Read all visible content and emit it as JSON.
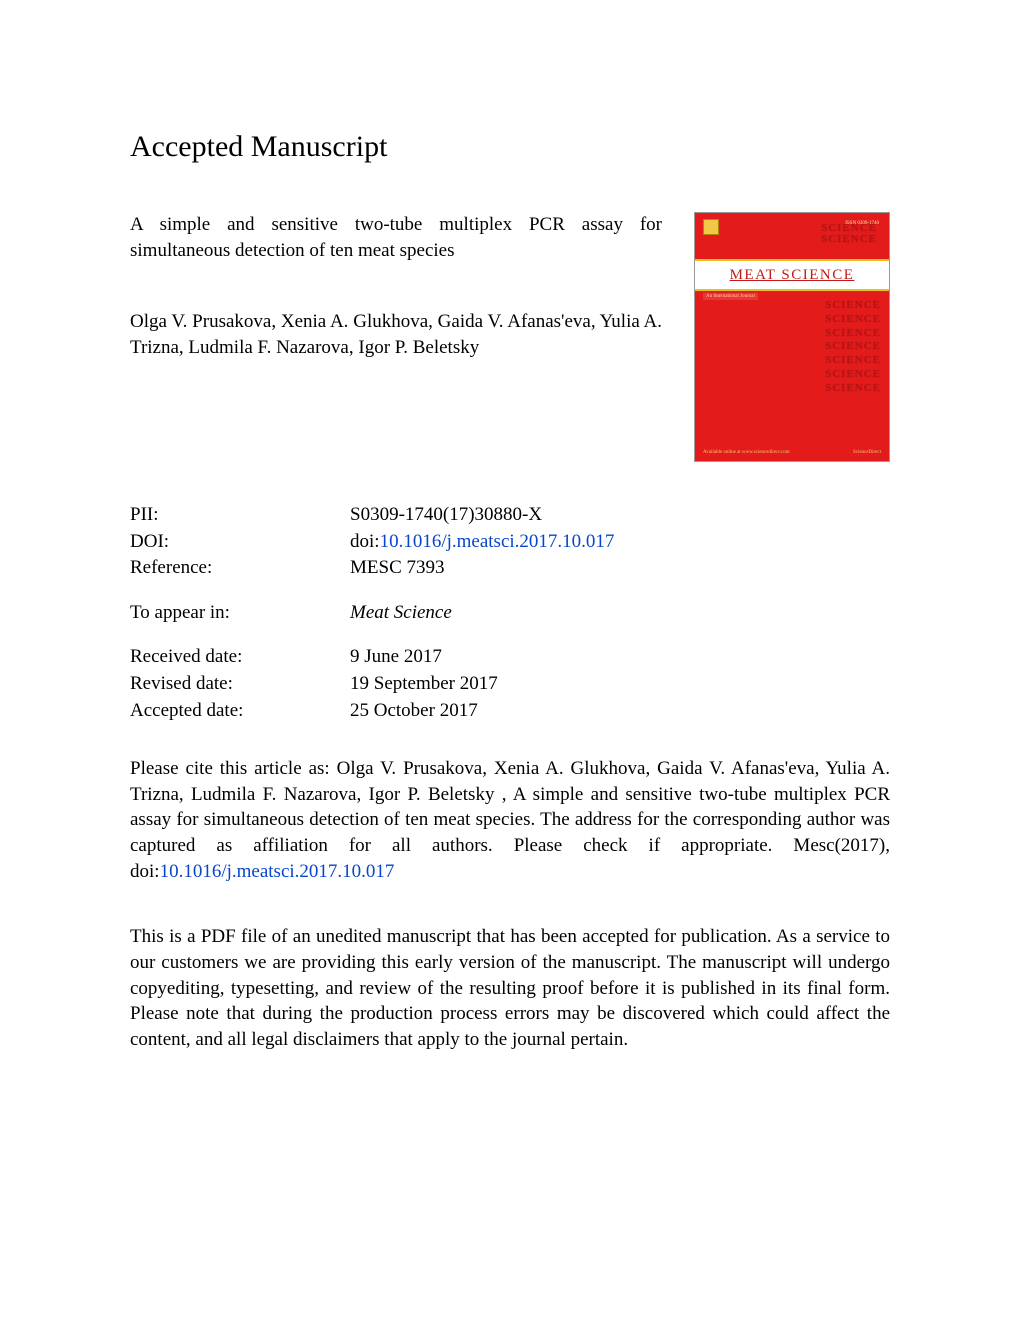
{
  "heading": "Accepted Manuscript",
  "article": {
    "title": "A simple and sensitive two-tube multiplex PCR assay for simultaneous detection of ten meat species",
    "authors": "Olga V. Prusakova, Xenia A. Glukhova, Gaida V. Afanas'eva, Yulia A. Trizna, Ludmila F. Nazarova, Igor P. Beletsky"
  },
  "meta": {
    "pii_label": "PII:",
    "pii_value": "S0309-1740(17)30880-X",
    "doi_label": "DOI:",
    "doi_prefix": "doi:",
    "doi_link": "10.1016/j.meatsci.2017.10.017",
    "reference_label": "Reference:",
    "reference_value": "MESC 7393",
    "to_appear_label": "To appear in:",
    "to_appear_value": "Meat Science",
    "received_label": "Received date:",
    "received_value": "9 June 2017",
    "revised_label": "Revised date:",
    "revised_value": "19 September 2017",
    "accepted_label": "Accepted date:",
    "accepted_value": "25 October 2017"
  },
  "cite": {
    "text_before": "Please cite this article as: Olga V. Prusakova, Xenia A. Glukhova, Gaida V. Afanas'eva, Yulia A. Trizna, Ludmila F. Nazarova, Igor P. Beletsky , A simple and sensitive two-tube multiplex PCR assay for simultaneous detection of ten meat species. The address for the corresponding author was captured as affiliation for all authors. Please check if appropriate. Mesc(2017), doi:",
    "doi_link": "10.1016/j.meatsci.2017.10.017"
  },
  "disclaimer": "This is a PDF file of an unedited manuscript that has been accepted for publication. As a service to our customers we are providing this early version of the manuscript. The manuscript will undergo copyediting, typesetting, and review of the resulting proof before it is published in its final form. Please note that during the production process errors may be discovered which could affect the content, and all legal disclaimers that apply to the journal pertain.",
  "cover": {
    "journal_title": "MEAT SCIENCE",
    "science_word": "SCIENCE",
    "subtitle": "An International Journal",
    "issn": "ISSN 0309-1740",
    "publisher_left": "Available online at www.sciencedirect.com",
    "publisher_right": "ScienceDirect",
    "background_color": "#e31b1b",
    "band_color": "#ffffff",
    "band_border_color": "#e8c020",
    "title_color": "#c31818",
    "ghost_text_color": "#b71414"
  },
  "colors": {
    "link": "#0645cc",
    "text": "#000000",
    "background": "#ffffff"
  },
  "typography": {
    "body_fontsize_pt": 14,
    "heading_fontsize_pt": 22,
    "font_family": "Times New Roman"
  }
}
